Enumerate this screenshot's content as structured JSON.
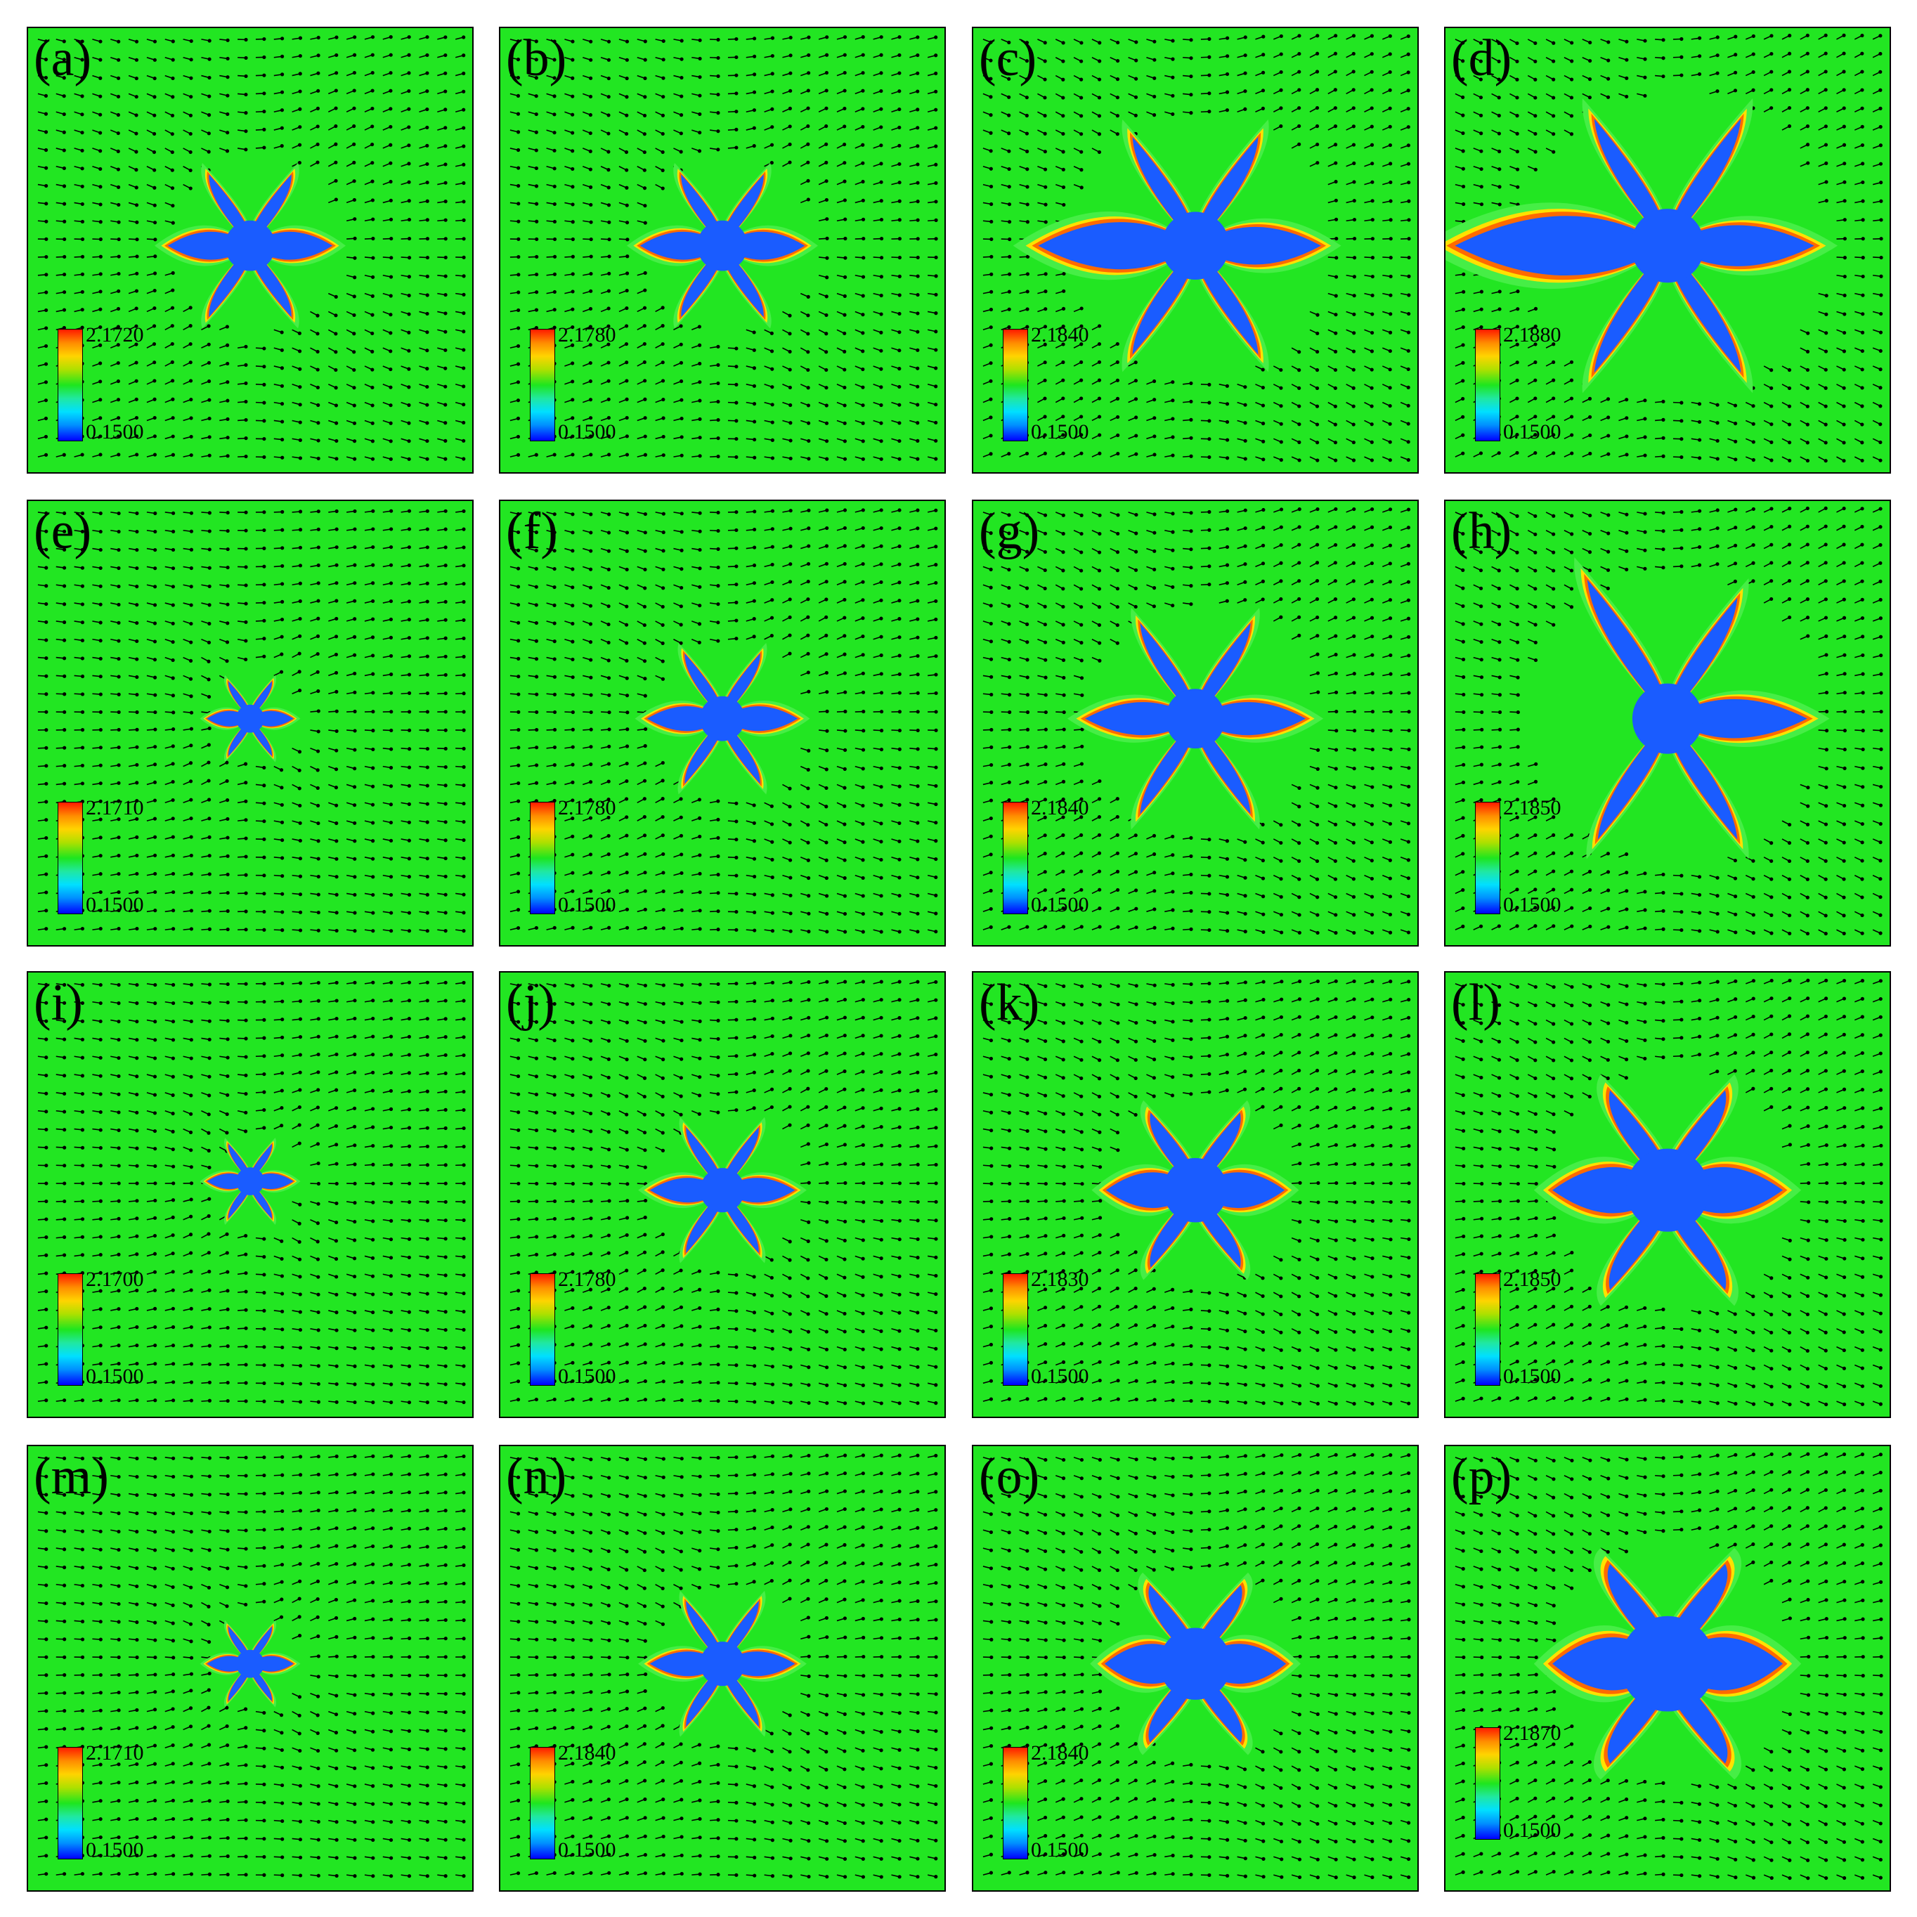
{
  "colors": {
    "liquid": "#22e622",
    "solid": "#1a5cff",
    "interface_warm": "#ff6a00",
    "interface_hot": "#ff2200",
    "interface_yellow": "#ffe100",
    "vector": "#000000"
  },
  "panels": [
    {
      "id": "a",
      "label": "(a)",
      "cmax": "2.1720",
      "cmin": "0.1500"
    },
    {
      "id": "b",
      "label": "(b)",
      "cmax": "2.1780",
      "cmin": "0.1500"
    },
    {
      "id": "c",
      "label": "(c)",
      "cmax": "2.1840",
      "cmin": "0.1500"
    },
    {
      "id": "d",
      "label": "(d)",
      "cmax": "2.1880",
      "cmin": "0.1500"
    },
    {
      "id": "e",
      "label": "(e)",
      "cmax": "2.1710",
      "cmin": "0.1500"
    },
    {
      "id": "f",
      "label": "(f)",
      "cmax": "2.1780",
      "cmin": "0.1500"
    },
    {
      "id": "g",
      "label": "(g)",
      "cmax": "2.1840",
      "cmin": "0.1500"
    },
    {
      "id": "h",
      "label": "(h)",
      "cmax": "2.1850",
      "cmin": "0.1500"
    },
    {
      "id": "i",
      "label": "(i)",
      "cmax": "2.1700",
      "cmin": "0.1500"
    },
    {
      "id": "j",
      "label": "(j)",
      "cmax": "2.1780",
      "cmin": "0.1500"
    },
    {
      "id": "k",
      "label": "(k)",
      "cmax": "2.1830",
      "cmin": "0.1500"
    },
    {
      "id": "l",
      "label": "(l)",
      "cmax": "2.1850",
      "cmin": "0.1500"
    },
    {
      "id": "m",
      "label": "(m)",
      "cmax": "2.1710",
      "cmin": "0.1500"
    },
    {
      "id": "n",
      "label": "(n)",
      "cmax": "2.1840",
      "cmin": "0.1500"
    },
    {
      "id": "o",
      "label": "(o)",
      "cmax": "2.1840",
      "cmin": "0.1500"
    },
    {
      "id": "p",
      "label": "(p)",
      "cmax": "2.1870",
      "cmin": "0.1500"
    }
  ]
}
